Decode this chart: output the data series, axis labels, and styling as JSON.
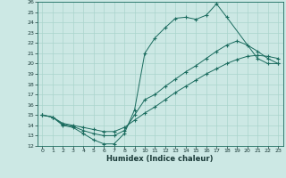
{
  "xlabel": "Humidex (Indice chaleur)",
  "bg_color": "#cce8e4",
  "line_color": "#1a6b5e",
  "grid_color": "#aad4cc",
  "xlim": [
    -0.5,
    23.5
  ],
  "ylim": [
    12,
    26
  ],
  "xticks": [
    0,
    1,
    2,
    3,
    4,
    5,
    6,
    7,
    8,
    9,
    10,
    11,
    12,
    13,
    14,
    15,
    16,
    17,
    18,
    19,
    20,
    21,
    22,
    23
  ],
  "yticks": [
    12,
    13,
    14,
    15,
    16,
    17,
    18,
    19,
    20,
    21,
    22,
    23,
    24,
    25,
    26
  ],
  "line1_x": [
    0,
    1,
    2,
    3,
    4,
    5,
    6,
    7,
    8,
    9,
    10,
    11,
    12,
    13,
    14,
    15,
    16,
    17,
    18,
    21,
    22,
    23
  ],
  "line1_y": [
    15.0,
    14.8,
    14.0,
    13.8,
    13.2,
    12.6,
    12.2,
    12.2,
    13.2,
    15.5,
    21.0,
    22.5,
    23.5,
    24.4,
    24.5,
    24.3,
    24.7,
    25.8,
    24.5,
    20.5,
    20.0,
    20.0
  ],
  "line2_x": [
    0,
    1,
    2,
    3,
    4,
    5,
    6,
    7,
    8,
    9,
    10,
    11,
    12,
    13,
    14,
    15,
    16,
    17,
    18,
    19,
    20,
    21,
    22,
    23
  ],
  "line2_y": [
    15.0,
    14.8,
    14.1,
    13.9,
    13.5,
    13.2,
    13.0,
    13.0,
    13.5,
    15.0,
    16.5,
    17.0,
    17.8,
    18.5,
    19.2,
    19.8,
    20.5,
    21.2,
    21.8,
    22.2,
    21.8,
    21.2,
    20.5,
    20.0
  ],
  "line3_x": [
    0,
    1,
    2,
    3,
    4,
    5,
    6,
    7,
    8,
    9,
    10,
    11,
    12,
    13,
    14,
    15,
    16,
    17,
    18,
    19,
    20,
    21,
    22,
    23
  ],
  "line3_y": [
    15.0,
    14.8,
    14.2,
    14.0,
    13.8,
    13.6,
    13.4,
    13.4,
    13.8,
    14.5,
    15.2,
    15.8,
    16.5,
    17.2,
    17.8,
    18.4,
    19.0,
    19.5,
    20.0,
    20.4,
    20.7,
    20.8,
    20.7,
    20.5
  ]
}
